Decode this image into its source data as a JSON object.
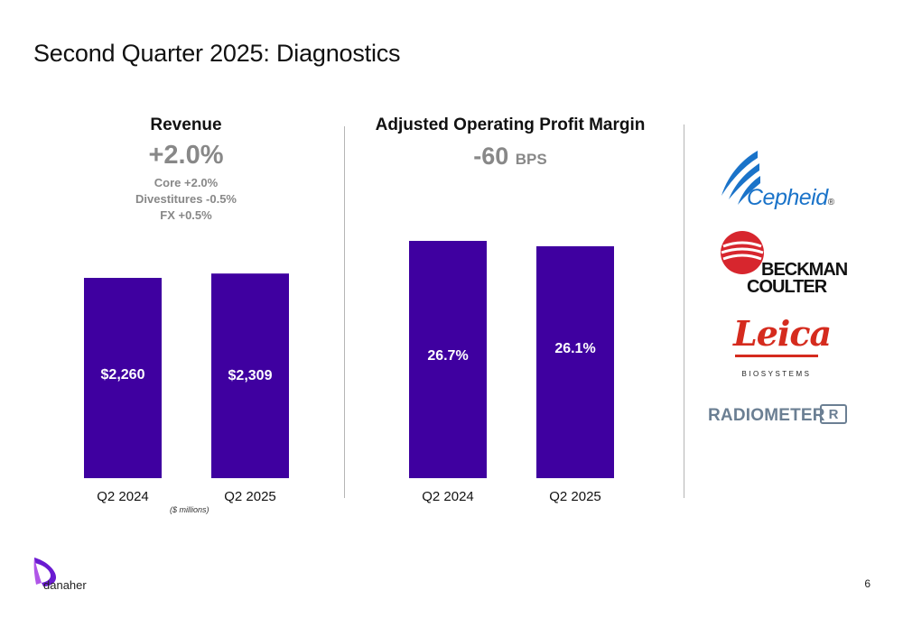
{
  "title": "Second Quarter 2025: Diagnostics",
  "revenue": {
    "heading": "Revenue",
    "growth": "+2.0%",
    "details": [
      "Core +2.0%",
      "Divestitures -0.5%",
      "FX +0.5%"
    ],
    "units_note": "($ millions)"
  },
  "margin": {
    "heading": "Adjusted Operating Profit Margin",
    "change_value": "-60",
    "change_unit": "BPS"
  },
  "chart_data": [
    {
      "type": "bar",
      "title": "Revenue",
      "categories": [
        "Q2 2024",
        "Q2 2025"
      ],
      "values": [
        2260,
        2309
      ],
      "labels": [
        "$2,260",
        "$2,309"
      ],
      "color": "#3f00a0"
    },
    {
      "type": "bar",
      "title": "Adjusted Operating Profit Margin",
      "categories": [
        "Q2 2024",
        "Q2 2025"
      ],
      "values": [
        26.7,
        26.1
      ],
      "labels": [
        "26.7%",
        "26.1%"
      ],
      "color": "#3f00a0"
    }
  ],
  "brands": {
    "cepheid": "Cepheid",
    "cepheid_mark": "®",
    "beckman_line1": "BECKMAN",
    "beckman_line2": "COULTER",
    "leica": "Leica",
    "leica_sub": "BIOSYSTEMS",
    "radiometer": "RADIOMETER",
    "radiometer_mark": "R"
  },
  "footer": {
    "company": "danaher",
    "page": "6"
  },
  "colors": {
    "bar": "#3f00a0",
    "muted_text": "#888888",
    "cepheid_blue": "#1a73c9",
    "beckman_red": "#d7262e",
    "leica_red": "#d52b1e",
    "radiometer_slate": "#6b7f93",
    "danaher_purple": "#6a1bd1"
  }
}
